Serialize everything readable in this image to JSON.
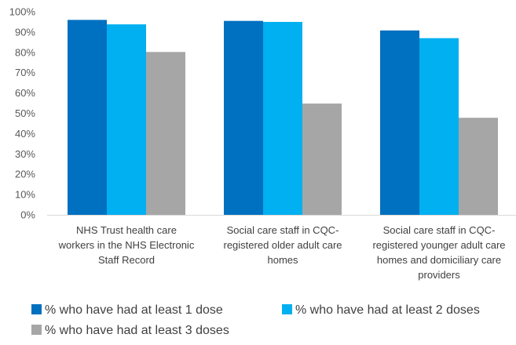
{
  "chart_data": {
    "type": "bar",
    "categories": [
      [
        "NHS Trust health care",
        "workers in the NHS Electronic",
        "Staff Record"
      ],
      [
        "Social care staff in CQC-",
        "registered older adult care",
        "homes"
      ],
      [
        "Social care staff in CQC-",
        "registered younger adult care",
        "homes and domiciliary care",
        "providers"
      ]
    ],
    "series": [
      {
        "name": "% who have had at least 1 dose",
        "color": "#0070c0",
        "values": [
          96,
          95.5,
          90.8
        ]
      },
      {
        "name": "% who have had at least 2 doses",
        "color": "#00b0f0",
        "values": [
          93.8,
          95,
          87
        ]
      },
      {
        "name": "% who have had at least 3 doses",
        "color": "#a6a6a6",
        "values": [
          80.2,
          54.8,
          47.8
        ]
      }
    ],
    "ylim": [
      0,
      100
    ],
    "yticks": [
      "0%",
      "10%",
      "20%",
      "30%",
      "40%",
      "50%",
      "60%",
      "70%",
      "80%",
      "90%",
      "100%"
    ],
    "grid": false,
    "legend": "bottom"
  }
}
